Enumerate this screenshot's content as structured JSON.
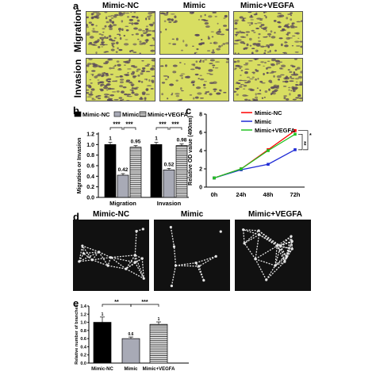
{
  "panels": {
    "a": {
      "letter": "a",
      "columns": [
        "Mimic-NC",
        "Mimic",
        "Mimic+VEGFA"
      ],
      "rows": [
        "Migration",
        "Invasion"
      ]
    },
    "b": {
      "letter": "b"
    },
    "c": {
      "letter": "c"
    },
    "d": {
      "letter": "d",
      "columns": [
        "Mimic-NC",
        "Mimic",
        "Mimic+VEGFA"
      ]
    },
    "e": {
      "letter": "e"
    }
  },
  "colors": {
    "micrograph_bg": "#d8de62",
    "cell_color": "#5a4a5a",
    "tube_bg": "#111111",
    "tube_line": "#e6e6e6",
    "nc": "#ff0000",
    "mimic": "#1f2bd6",
    "vegfa": "#22c322",
    "bar_nc": "#000000",
    "bar_mimic": "#a8aab6",
    "bar_vegfa_hatch": "#000000"
  },
  "chart_data": [
    {
      "panel": "b",
      "type": "bar",
      "legend": [
        "Mimic-NC",
        "Mimic",
        "Mimic+VEGFA"
      ],
      "categories": [
        "Migration",
        "Invasion"
      ],
      "series": [
        {
          "name": "Mimic-NC",
          "values": [
            1.0,
            1.0
          ]
        },
        {
          "name": "Mimic",
          "values": [
            0.42,
            0.52
          ]
        },
        {
          "name": "Mimic+VEGFA",
          "values": [
            0.95,
            0.98
          ]
        }
      ],
      "data_labels": [
        [
          "1",
          "0.42",
          "0.95"
        ],
        [
          "1",
          "0.52",
          "0.98"
        ]
      ],
      "significance": [
        "***",
        "***",
        "***",
        "***"
      ],
      "ylabel": "Migration or Invasion",
      "ylim": [
        0.0,
        1.2
      ],
      "yticks": [
        "0.0",
        "0.2",
        "0.4",
        "0.6",
        "0.8",
        "1.0",
        "1.2"
      ]
    },
    {
      "panel": "c",
      "type": "line",
      "x": [
        "0h",
        "24h",
        "48h",
        "72h"
      ],
      "series": [
        {
          "name": "Mimic-NC",
          "values": [
            1.0,
            2.0,
            4.1,
            6.2
          ]
        },
        {
          "name": "Mimic",
          "values": [
            1.0,
            1.9,
            2.5,
            4.1
          ]
        },
        {
          "name": "Mimic+VEGFA",
          "values": [
            1.0,
            2.0,
            4.0,
            5.8
          ]
        }
      ],
      "ylabel": "Relative OD value (490nm)",
      "ylim": [
        0,
        8
      ],
      "yticks": [
        "0",
        "2",
        "4",
        "6",
        "8"
      ],
      "significance": [
        "**",
        "*"
      ]
    },
    {
      "panel": "e",
      "type": "bar",
      "categories": [
        "Mimic-NC",
        "Mimic",
        "Mimic+VEGFA"
      ],
      "values": [
        1.0,
        0.6,
        0.95
      ],
      "data_labels": [
        "1",
        "0.6",
        "1"
      ],
      "significance": [
        "**",
        "***"
      ],
      "ylabel": "Relative number of branches",
      "ylim": [
        0.0,
        1.4
      ],
      "yticks": [
        "0.0",
        "0.2",
        "0.4",
        "0.6",
        "0.8",
        "1.0",
        "1.2",
        "1.4"
      ]
    }
  ]
}
